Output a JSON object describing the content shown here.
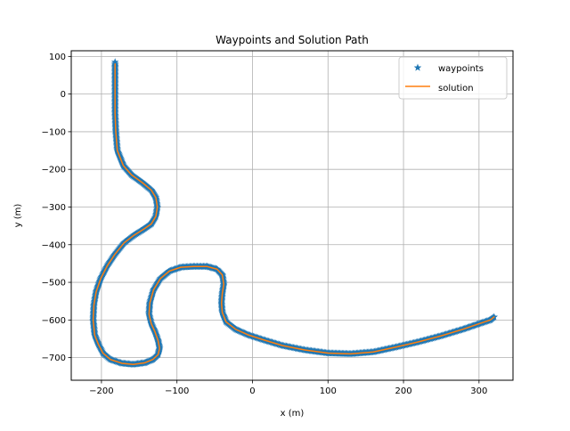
{
  "chart_data": {
    "type": "line",
    "title": "Waypoints and Solution Path",
    "xlabel": "x (m)",
    "ylabel": "y (m)",
    "xlim": [
      -240,
      345
    ],
    "ylim": [
      -760,
      115
    ],
    "xticks": [
      -200,
      -100,
      0,
      100,
      200,
      300
    ],
    "xtick_labels": [
      "−200",
      "−100",
      "0",
      "100",
      "200",
      "300"
    ],
    "yticks": [
      100,
      0,
      -100,
      -200,
      -300,
      -400,
      -500,
      -600,
      -700
    ],
    "ytick_labels": [
      "100",
      "0",
      "−100",
      "−200",
      "−300",
      "−400",
      "−500",
      "−600",
      "−700"
    ],
    "grid": true,
    "legend_position": "top-right",
    "series": [
      {
        "name": "waypoints",
        "marker": "star",
        "color": "#1f77b4",
        "x": [
          -182,
          -182,
          -182,
          -182,
          -181,
          -179,
          -171,
          -160,
          -146,
          -134,
          -128,
          -126,
          -128,
          -134,
          -145,
          -157,
          -170,
          -182,
          -192,
          -201,
          -207,
          -210,
          -211,
          -209,
          -204,
          -198,
          -188,
          -173,
          -158,
          -143,
          -132,
          -125,
          -123,
          -125,
          -129,
          -134,
          -137,
          -136,
          -131,
          -122,
          -110,
          -95,
          -78,
          -60,
          -47,
          -40,
          -38,
          -40,
          -41,
          -40,
          -35,
          -22,
          -5,
          15,
          40,
          70,
          100,
          130,
          160,
          190,
          220,
          250,
          278,
          300,
          315,
          320
        ],
        "y": [
          80,
          40,
          0,
          -50,
          -100,
          -150,
          -190,
          -215,
          -235,
          -255,
          -275,
          -300,
          -325,
          -345,
          -360,
          -375,
          -395,
          -425,
          -455,
          -490,
          -525,
          -560,
          -600,
          -640,
          -665,
          -688,
          -705,
          -715,
          -718,
          -714,
          -705,
          -692,
          -675,
          -655,
          -632,
          -610,
          -585,
          -555,
          -520,
          -490,
          -470,
          -460,
          -458,
          -458,
          -465,
          -480,
          -505,
          -530,
          -555,
          -580,
          -605,
          -625,
          -640,
          -653,
          -668,
          -680,
          -688,
          -690,
          -685,
          -672,
          -658,
          -642,
          -625,
          -610,
          -600,
          -592
        ]
      },
      {
        "name": "solution",
        "color": "#ff7f0e",
        "x": [
          -182,
          -182,
          -182,
          -182,
          -181,
          -179,
          -171,
          -160,
          -146,
          -134,
          -128,
          -126,
          -128,
          -134,
          -145,
          -157,
          -170,
          -182,
          -192,
          -201,
          -207,
          -210,
          -211,
          -209,
          -204,
          -198,
          -188,
          -173,
          -158,
          -143,
          -132,
          -125,
          -123,
          -125,
          -129,
          -134,
          -137,
          -136,
          -131,
          -122,
          -110,
          -95,
          -78,
          -60,
          -47,
          -40,
          -38,
          -40,
          -41,
          -40,
          -35,
          -22,
          -5,
          15,
          40,
          70,
          100,
          130,
          160,
          190,
          220,
          250,
          278,
          300,
          315,
          320
        ],
        "y": [
          80,
          40,
          0,
          -50,
          -100,
          -150,
          -190,
          -215,
          -235,
          -255,
          -275,
          -300,
          -325,
          -345,
          -360,
          -375,
          -395,
          -425,
          -455,
          -490,
          -525,
          -560,
          -600,
          -640,
          -665,
          -688,
          -705,
          -715,
          -718,
          -714,
          -705,
          -692,
          -675,
          -655,
          -632,
          -610,
          -585,
          -555,
          -520,
          -490,
          -470,
          -460,
          -458,
          -458,
          -465,
          -480,
          -505,
          -530,
          -555,
          -580,
          -605,
          -625,
          -640,
          -653,
          -668,
          -680,
          -688,
          -690,
          -685,
          -672,
          -658,
          -642,
          -625,
          -610,
          -600,
          -592
        ]
      }
    ]
  }
}
